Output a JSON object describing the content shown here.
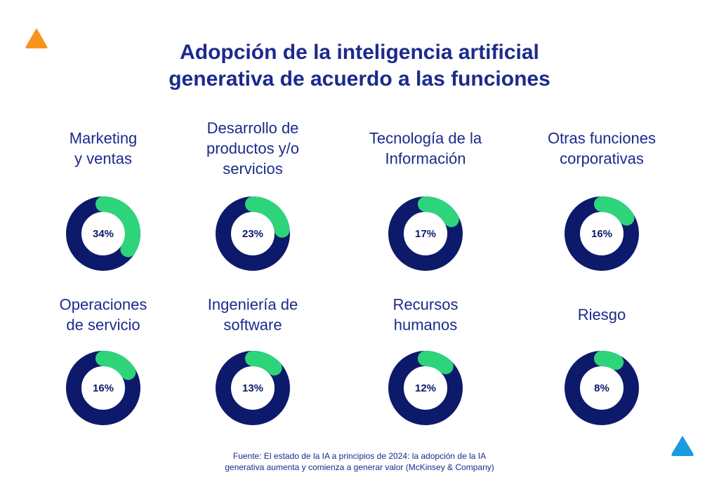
{
  "title": [
    "Adopción de la inteligencia artificial",
    "generativa de acuerdo a las funciones"
  ],
  "chart_data": [
    {
      "type": "donut",
      "title": [
        "Marketing",
        "y ventas"
      ],
      "values": [
        34
      ],
      "value_labels": [
        "34%"
      ],
      "color": "#2ed47a",
      "track_color": "#0d1a6b"
    },
    {
      "type": "donut",
      "title": [
        "Desarrollo de",
        "productos y/o",
        "servicios"
      ],
      "values": [
        23
      ],
      "value_labels": [
        "23%"
      ],
      "color": "#2ed47a",
      "track_color": "#0d1a6b"
    },
    {
      "type": "donut",
      "title": [
        "Tecnología de la",
        "Información"
      ],
      "values": [
        17
      ],
      "value_labels": [
        "17%"
      ],
      "color": "#2ed47a",
      "track_color": "#0d1a6b"
    },
    {
      "type": "donut",
      "title": [
        "Otras funciones",
        "corporativas"
      ],
      "values": [
        16
      ],
      "value_labels": [
        "16%"
      ],
      "color": "#2ed47a",
      "track_color": "#0d1a6b"
    },
    {
      "type": "donut",
      "title": [
        "Operaciones",
        "de servicio"
      ],
      "values": [
        16
      ],
      "value_labels": [
        "16%"
      ],
      "color": "#2ed47a",
      "track_color": "#0d1a6b"
    },
    {
      "type": "donut",
      "title": [
        "Ingeniería de",
        "software"
      ],
      "values": [
        13
      ],
      "value_labels": [
        "13%"
      ],
      "color": "#2ed47a",
      "track_color": "#0d1a6b"
    },
    {
      "type": "donut",
      "title": [
        "Recursos",
        "humanos"
      ],
      "values": [
        12
      ],
      "value_labels": [
        "12%"
      ],
      "color": "#2ed47a",
      "track_color": "#0d1a6b"
    },
    {
      "type": "donut",
      "title": [
        "Riesgo"
      ],
      "values": [
        8
      ],
      "value_labels": [
        "8%"
      ],
      "color": "#2ed47a",
      "track_color": "#0d1a6b"
    }
  ],
  "source": [
    "Fuente: El estado de la IA a principios de 2024: la adopción de la IA",
    "generativa aumenta y comienza a generar valor (McKinsey & Company)"
  ]
}
